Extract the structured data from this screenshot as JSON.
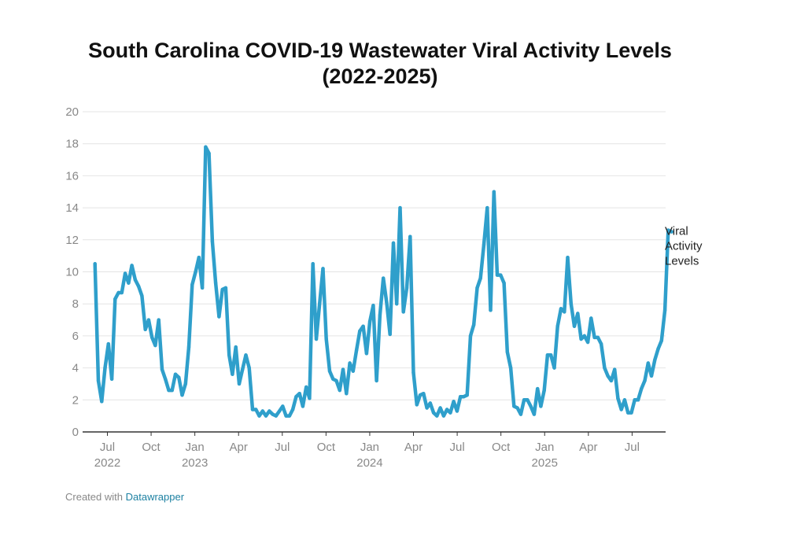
{
  "page": {
    "title_line1": "South Carolina COVID-19  Wastewater Viral Activity Levels",
    "title_line2": "(2022-2025)",
    "footer_prefix": "Created with",
    "footer_link": "Datawrapper"
  },
  "colors": {
    "line": "#2f9fcb",
    "grid": "#e4e4e4",
    "axis": "#333333",
    "tick": "#888888"
  },
  "chart_data": {
    "type": "line",
    "title": "South Carolina COVID-19  Wastewater Viral Activity Levels (2022-2025)",
    "xlabel": "",
    "ylabel": "",
    "ylim": [
      0,
      20
    ],
    "yticks": [
      0,
      2,
      4,
      6,
      8,
      10,
      12,
      14,
      16,
      18,
      20
    ],
    "x_axis_type": "weekly, months since 2022-01-01",
    "xlim": [
      4.3,
      44.3
    ],
    "xticks": [
      {
        "label": "Jul",
        "year": "2022",
        "month_index": 6
      },
      {
        "label": "Oct",
        "year": "",
        "month_index": 9
      },
      {
        "label": "Jan",
        "year": "2023",
        "month_index": 12
      },
      {
        "label": "Apr",
        "year": "",
        "month_index": 15
      },
      {
        "label": "Jul",
        "year": "",
        "month_index": 18
      },
      {
        "label": "Oct",
        "year": "",
        "month_index": 21
      },
      {
        "label": "Jan",
        "year": "2024",
        "month_index": 24
      },
      {
        "label": "Apr",
        "year": "",
        "month_index": 27
      },
      {
        "label": "Jul",
        "year": "",
        "month_index": 30
      },
      {
        "label": "Oct",
        "year": "",
        "month_index": 33
      },
      {
        "label": "Jan",
        "year": "2025",
        "month_index": 36
      },
      {
        "label": "Apr",
        "year": "",
        "month_index": 39
      },
      {
        "label": "Jul",
        "year": "",
        "month_index": 42
      }
    ],
    "legend": "right, inline at line end",
    "series": [
      {
        "name": "Viral Activity Levels",
        "start_month_index": 5.15,
        "step_months": 0.23,
        "values": [
          10.5,
          3.2,
          1.9,
          4.0,
          5.5,
          3.3,
          8.3,
          8.7,
          8.7,
          9.9,
          9.3,
          10.4,
          9.5,
          9.1,
          8.5,
          6.4,
          7.0,
          5.9,
          5.4,
          7.0,
          3.9,
          3.3,
          2.6,
          2.6,
          3.6,
          3.4,
          2.3,
          3.0,
          5.3,
          9.2,
          10.0,
          10.9,
          9.0,
          17.8,
          17.4,
          11.9,
          9.3,
          7.2,
          8.9,
          9.0,
          4.8,
          3.6,
          5.3,
          3.0,
          3.9,
          4.8,
          4.0,
          1.4,
          1.4,
          1.0,
          1.3,
          1.0,
          1.3,
          1.1,
          1.0,
          1.3,
          1.6,
          1.0,
          1.0,
          1.4,
          2.2,
          2.4,
          1.6,
          2.8,
          2.1,
          10.5,
          5.8,
          8.0,
          10.2,
          5.8,
          3.8,
          3.3,
          3.2,
          2.6,
          3.9,
          2.4,
          4.3,
          3.8,
          5.1,
          6.3,
          6.6,
          4.9,
          6.9,
          7.9,
          3.2,
          7.3,
          9.6,
          8.1,
          6.1,
          11.8,
          8.0,
          14.0,
          7.5,
          9.0,
          12.2,
          3.7,
          1.7,
          2.3,
          2.4,
          1.5,
          1.8,
          1.2,
          1.0,
          1.5,
          1.0,
          1.4,
          1.2,
          1.9,
          1.3,
          2.2,
          2.2,
          2.3,
          6.0,
          6.7,
          9.0,
          9.6,
          11.7,
          14.0,
          7.6,
          15.0,
          9.8,
          9.8,
          9.3,
          5.0,
          4.0,
          1.6,
          1.5,
          1.1,
          2.0,
          2.0,
          1.6,
          1.1,
          2.7,
          1.6,
          2.6,
          4.8,
          4.8,
          4.0,
          6.6,
          7.7,
          7.5,
          10.9,
          8.0,
          6.6,
          7.4,
          5.8,
          6.0,
          5.6,
          7.1,
          5.9,
          5.9,
          5.5,
          4.0,
          3.5,
          3.2,
          3.9,
          2.1,
          1.4,
          2.0,
          1.2,
          1.2,
          2.0,
          2.0,
          2.7,
          3.2,
          4.3,
          3.5,
          4.5,
          5.2,
          5.7,
          7.6,
          12.6,
          12.5
        ]
      }
    ]
  }
}
